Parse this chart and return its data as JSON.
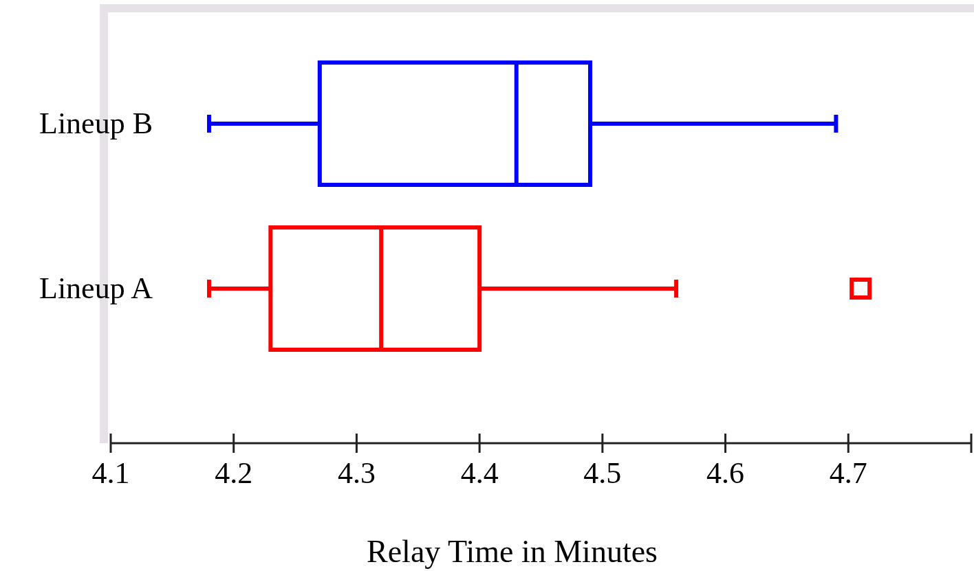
{
  "chart_data": {
    "type": "box",
    "orientation": "horizontal",
    "xlabel": "Relay Time in Minutes",
    "categories": [
      "Lineup B",
      "Lineup A"
    ],
    "boxes": [
      {
        "low": 4.18,
        "q1": 4.27,
        "median": 4.43,
        "q3": 4.49,
        "high": 4.69
      },
      {
        "low": 4.18,
        "q1": 4.23,
        "median": 4.32,
        "q3": 4.4,
        "high": 4.56,
        "outliers": [
          4.71
        ]
      }
    ],
    "colors": [
      "#0000ff",
      "#ff0000"
    ],
    "marker": "square",
    "xlim": [
      4.1,
      4.8
    ],
    "xticks": [
      4.1,
      4.2,
      4.3,
      4.4,
      4.5,
      4.6,
      4.7,
      {
        "value": 4.8,
        "label": null
      }
    ],
    "grid": false
  }
}
